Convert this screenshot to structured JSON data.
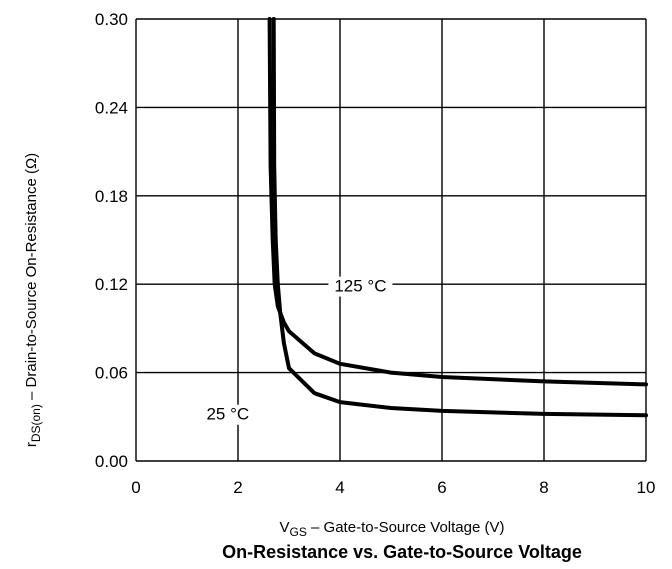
{
  "chart_data": {
    "type": "line",
    "title": "On-Resistance vs. Gate-to-Source Voltage",
    "xlabel": "V",
    "xlabel_sub": "GS",
    "xlabel_rest": " – Gate-to-Source Voltage (V)",
    "ylabel": "r",
    "ylabel_sub": "DS(on)",
    "ylabel_rest": " – Drain-to-Source On-Resistance (Ω)",
    "xlim": [
      0,
      10
    ],
    "ylim": [
      0,
      0.3
    ],
    "x_ticks": [
      "0",
      "2",
      "4",
      "6",
      "8",
      "10"
    ],
    "y_ticks": [
      "0.00",
      "0.06",
      "0.12",
      "0.18",
      "0.24",
      "0.30"
    ],
    "grid": true,
    "series": [
      {
        "name": "125 °C",
        "points": [
          [
            2.62,
            0.3
          ],
          [
            2.64,
            0.2
          ],
          [
            2.68,
            0.15
          ],
          [
            2.72,
            0.12
          ],
          [
            2.78,
            0.105
          ],
          [
            2.9,
            0.094
          ],
          [
            3.0,
            0.088
          ],
          [
            3.5,
            0.073
          ],
          [
            4.0,
            0.066
          ],
          [
            5.0,
            0.06
          ],
          [
            6.0,
            0.057
          ],
          [
            8.0,
            0.054
          ],
          [
            10.0,
            0.052
          ]
        ]
      },
      {
        "name": "25 °C",
        "points": [
          [
            2.7,
            0.3
          ],
          [
            2.71,
            0.2
          ],
          [
            2.74,
            0.15
          ],
          [
            2.78,
            0.12
          ],
          [
            2.83,
            0.1
          ],
          [
            2.9,
            0.08
          ],
          [
            3.0,
            0.063
          ],
          [
            3.5,
            0.046
          ],
          [
            4.0,
            0.04
          ],
          [
            5.0,
            0.036
          ],
          [
            6.0,
            0.034
          ],
          [
            8.0,
            0.032
          ],
          [
            10.0,
            0.031
          ]
        ]
      }
    ],
    "annotations": [
      {
        "text": "125 °C",
        "x": 4.4,
        "y": 0.115
      },
      {
        "text": "25 °C",
        "x": 1.8,
        "y": 0.028
      }
    ]
  }
}
